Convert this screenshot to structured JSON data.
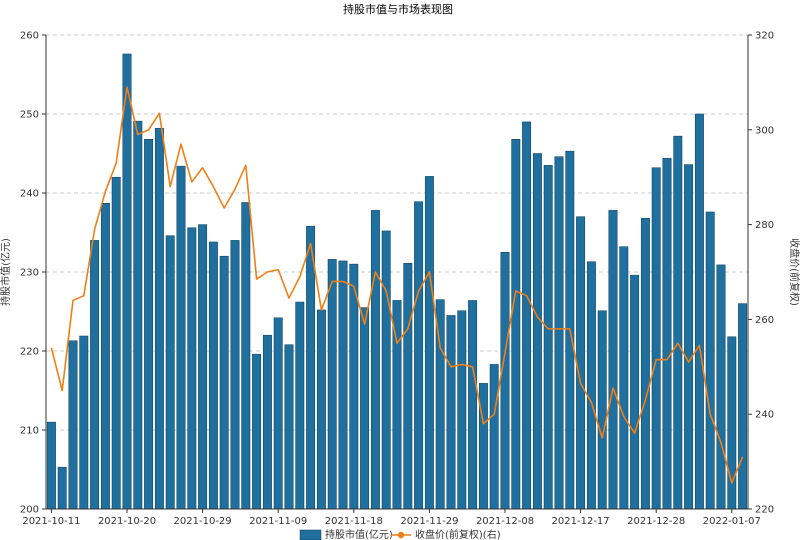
{
  "chart_data": {
    "type": "bar",
    "title": "持股市值与市场表现图",
    "xlabel": "",
    "ylabel": "持股市值(亿元)",
    "ylabel_right": "收盘价(前复权)",
    "ylim": [
      200,
      260
    ],
    "ylim_right": [
      220,
      320
    ],
    "yticks": [
      200,
      210,
      220,
      230,
      240,
      250,
      260
    ],
    "yticks_right": [
      220,
      240,
      260,
      280,
      300,
      320
    ],
    "grid": true,
    "legend_position": "bottom-center",
    "x_tick_labels": [
      {
        "index": 0,
        "label": "2021-10-11"
      },
      {
        "index": 7,
        "label": "2021-10-20"
      },
      {
        "index": 14,
        "label": "2021-10-29"
      },
      {
        "index": 21,
        "label": "2021-11-09"
      },
      {
        "index": 28,
        "label": "2021-11-18"
      },
      {
        "index": 35,
        "label": "2021-11-29"
      },
      {
        "index": 42,
        "label": "2021-12-08"
      },
      {
        "index": 49,
        "label": "2021-12-17"
      },
      {
        "index": 56,
        "label": "2021-12-28"
      },
      {
        "index": 63,
        "label": "2022-01-07"
      }
    ],
    "series": [
      {
        "name": "持股市值(亿元)",
        "type": "bar",
        "axis": "left",
        "color": "#1f6f9f",
        "values": [
          211.0,
          205.3,
          221.3,
          221.9,
          234.0,
          238.7,
          242.0,
          257.6,
          249.1,
          246.8,
          248.2,
          234.6,
          243.4,
          235.6,
          236.0,
          233.8,
          232.0,
          234.0,
          238.8,
          219.6,
          222.0,
          224.2,
          220.8,
          226.2,
          235.8,
          225.2,
          231.6,
          231.4,
          231.0,
          225.5,
          237.8,
          235.2,
          226.4,
          231.1,
          238.9,
          242.1,
          226.5,
          224.5,
          225.1,
          226.4,
          215.9,
          218.3,
          232.5,
          246.8,
          249.0,
          245.0,
          243.5,
          244.6,
          245.3,
          237.0,
          231.3,
          225.1,
          237.8,
          233.2,
          229.6,
          236.8,
          243.2,
          244.4,
          247.2,
          243.6,
          250.0,
          237.6,
          230.9,
          221.8,
          226.0
        ]
      },
      {
        "name": "收盘价(前复权)(右)",
        "type": "line",
        "axis": "right",
        "color": "#f07f14",
        "values": [
          254.0,
          245.0,
          264.0,
          265.0,
          279.0,
          287.0,
          293.0,
          309.0,
          299.0,
          300.0,
          303.5,
          288.0,
          297.0,
          289.0,
          292.0,
          288.0,
          283.5,
          287.5,
          292.5,
          268.5,
          270.0,
          270.5,
          264.5,
          269.0,
          276.0,
          262.0,
          268.0,
          268.0,
          267.0,
          259.0,
          270.0,
          266.0,
          255.0,
          258.0,
          266.0,
          270.0,
          254.0,
          250.0,
          250.5,
          250.0,
          238.0,
          240.0,
          253.0,
          266.0,
          265.0,
          260.5,
          258.0,
          258.0,
          258.0,
          246.5,
          242.5,
          235.0,
          245.5,
          239.5,
          236.0,
          243.0,
          251.5,
          251.5,
          255.0,
          251.0,
          254.5,
          240.0,
          234.0,
          225.5,
          231.0
        ]
      }
    ]
  }
}
